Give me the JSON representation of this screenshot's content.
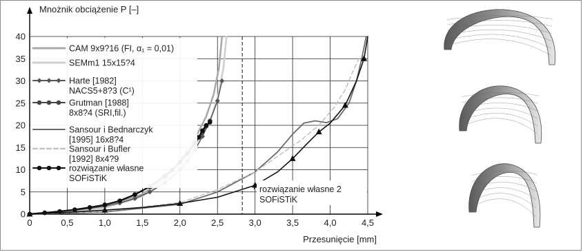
{
  "chart_data": {
    "type": "line",
    "ylabel": "Mnożnik obciążenie P [–]",
    "xlabel": "Przesunięcie [mm]",
    "xlim": [
      0,
      4.5
    ],
    "ylim": [
      0,
      40
    ],
    "xticks": [
      "0",
      "0,5",
      "1,0",
      "1,5",
      "2,0",
      "2,5",
      "3,0",
      "3,5",
      "4,0",
      "4,5"
    ],
    "yticks": [
      "0",
      "5",
      "10",
      "15",
      "20",
      "25",
      "30",
      "35",
      "40"
    ],
    "grid": true,
    "reference_line_x": 2.83,
    "legend": [
      {
        "label": "CAM 9x9?16 (FI, α₁ = 0,01)",
        "color": "#a9a9a9",
        "marker": "none",
        "dash": "none"
      },
      {
        "label": "SEMm1 15x15?4",
        "color": "#cfcfcf",
        "marker": "none",
        "dash": "none"
      },
      {
        "label": "Harte [1982]\nNACS5+8?3 (C¹)",
        "color": "#555555",
        "marker": "diamond",
        "dash": "none"
      },
      {
        "label": "Grutman [1988]\n8x8?4 (SRI,fil.)",
        "color": "#444444",
        "marker": "circle",
        "dash": "none"
      },
      {
        "label": "Sansour i Bednarczyk\n[1995] 16x8?4",
        "color": "#6a6a6a",
        "marker": "none",
        "dash": "none"
      },
      {
        "label": "Sansour i Bufler\n[1992] 8x4?9",
        "color": "#bdbdbd",
        "marker": "none",
        "dash": "dashed"
      },
      {
        "label": "rozwiązanie własne\nSOFiSTiK",
        "color": "#111111",
        "marker": "circle",
        "dash": "none"
      }
    ],
    "annotations": [
      {
        "text": "rozwiązanie własne 2\nSOFiSTiK",
        "x": 3.1,
        "y": 3.5
      }
    ],
    "series": [
      {
        "name": "CAM 9x9?16 (FI, α₁ = 0,01)",
        "color": "#a9a9a9",
        "width": 2.6,
        "dash": "none",
        "marker": "none",
        "x": [
          0,
          0.5,
          1.0,
          1.5,
          1.8,
          2.0,
          2.2,
          2.35,
          2.45,
          2.52,
          2.56
        ],
        "y": [
          0,
          0.6,
          1.5,
          4.5,
          8,
          12,
          17,
          22,
          27,
          33,
          40
        ]
      },
      {
        "name": "SEMm1 15x15?4",
        "color": "#cfcfcf",
        "width": 2.6,
        "dash": "none",
        "marker": "none",
        "x": [
          0,
          0.5,
          1.0,
          1.5,
          1.8,
          2.0,
          2.2,
          2.4,
          2.5,
          2.58,
          2.62
        ],
        "y": [
          0,
          0.5,
          1.4,
          4,
          7.5,
          11,
          15.5,
          21,
          26,
          33,
          40
        ]
      },
      {
        "name": "Harte [1982] NACS5+8?3 (C¹)",
        "color": "#555555",
        "width": 1.5,
        "dash": "none",
        "marker": "diamond",
        "x": [
          0,
          0.2,
          0.4,
          0.6,
          0.8,
          1.0,
          1.2,
          1.4,
          1.6,
          1.8,
          2.0,
          2.1,
          2.2,
          2.3,
          2.4,
          2.5,
          2.56
        ],
        "y": [
          0,
          0.3,
          0.6,
          0.9,
          1.3,
          1.8,
          2.5,
          3.5,
          5,
          7,
          10,
          12,
          14.5,
          17.5,
          21,
          25.5,
          30
        ]
      },
      {
        "name": "Grutman [1988] 8x8?4 (SRI,fil.)",
        "color": "#444444",
        "width": 1.8,
        "dash": "none",
        "marker": "circle",
        "x": [
          0,
          0.2,
          0.4,
          0.6,
          0.8,
          1.0,
          1.2,
          1.4,
          1.6,
          1.8,
          1.9,
          2.0,
          2.1,
          2.2,
          2.3,
          2.35,
          2.4
        ],
        "y": [
          0,
          0.3,
          0.6,
          1.0,
          1.5,
          2.1,
          3.0,
          4.4,
          6.2,
          8.6,
          10,
          11.7,
          13.7,
          16,
          18.4,
          19.8,
          21
        ]
      },
      {
        "name": "Sansour i Bednarczyk [1995] 16x8?4",
        "color": "#6a6a6a",
        "width": 1.8,
        "dash": "none",
        "marker": "none",
        "x": [
          0,
          1.0,
          2.0,
          2.5,
          3.0,
          3.3,
          3.5,
          3.65,
          3.8,
          3.95,
          4.1,
          4.25,
          4.35,
          4.42,
          4.48
        ],
        "y": [
          0,
          0.5,
          2.2,
          5,
          9.5,
          14,
          18,
          20.5,
          21,
          20.6,
          21.5,
          25,
          30,
          35,
          40
        ]
      },
      {
        "name": "Sansour i Bufler [1992] 8x4?9",
        "color": "#bdbdbd",
        "width": 1.4,
        "dash": "dashed",
        "marker": "none",
        "x": [
          0,
          1.0,
          2.0,
          2.5,
          3.0,
          3.3,
          3.6,
          3.85,
          4.05,
          4.2,
          4.3,
          4.38
        ],
        "y": [
          0,
          0.6,
          2.6,
          5.5,
          9.5,
          13,
          16.5,
          20,
          24,
          28,
          32,
          35
        ]
      },
      {
        "name": "rozwiązanie własne SOFiSTiK",
        "color": "#111111",
        "width": 2.4,
        "dash": "none",
        "marker": "circle",
        "x": [
          0,
          0.2,
          0.4,
          0.6,
          0.8,
          1.0,
          1.2,
          1.4,
          1.6,
          1.8,
          1.9,
          2.0,
          2.1,
          2.2,
          2.25,
          2.3,
          2.35,
          2.4
        ],
        "y": [
          0,
          0.3,
          0.6,
          1.0,
          1.5,
          2.1,
          3.0,
          4.4,
          6.2,
          8.6,
          10,
          11.7,
          13.7,
          16,
          17.3,
          18.8,
          20,
          20.7
        ]
      },
      {
        "name": "rozwiązanie własne 2 SOFiSTiK",
        "color": "#111111",
        "width": 1.6,
        "dash": "none",
        "marker": "triangle",
        "x": [
          0,
          0.5,
          1.0,
          1.5,
          2.0,
          2.5,
          3.0,
          3.3,
          3.5,
          3.7,
          3.85,
          4.0,
          4.2,
          4.35,
          4.45,
          4.5
        ],
        "y": [
          0,
          0.4,
          0.9,
          1.5,
          2.4,
          3.8,
          6.5,
          9.5,
          12.5,
          16,
          18.5,
          20.5,
          24.5,
          30,
          35,
          40
        ]
      }
    ]
  },
  "shells": [
    {
      "label": "deformed-cylindrical-shell-top"
    },
    {
      "label": "deformed-cylindrical-shell-middle"
    },
    {
      "label": "deformed-cylindrical-shell-bottom"
    }
  ]
}
